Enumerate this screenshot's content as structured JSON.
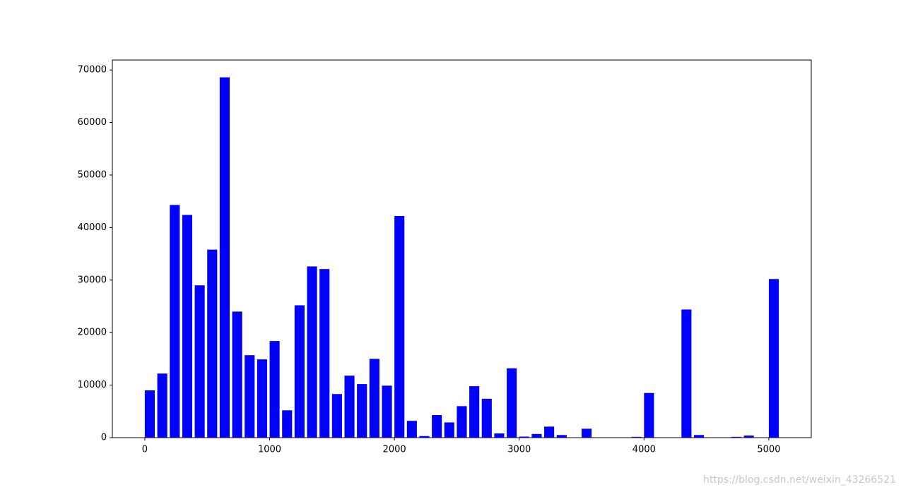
{
  "chart_data": {
    "type": "bar",
    "x": [
      0,
      100,
      200,
      300,
      400,
      500,
      600,
      700,
      800,
      900,
      1000,
      1100,
      1200,
      1300,
      1400,
      1500,
      1600,
      1700,
      1800,
      1900,
      2000,
      2100,
      2200,
      2300,
      2400,
      2500,
      2600,
      2700,
      2800,
      2900,
      3000,
      3100,
      3200,
      3300,
      3400,
      3500,
      3600,
      3700,
      3800,
      3900,
      4000,
      4100,
      4200,
      4300,
      4400,
      4500,
      4600,
      4700,
      4800,
      4900,
      5000
    ],
    "values": [
      9000,
      12200,
      44300,
      42400,
      29000,
      35800,
      68600,
      24000,
      15700,
      14900,
      18400,
      5200,
      25200,
      32600,
      32100,
      8300,
      11800,
      10200,
      15000,
      9900,
      42200,
      3200,
      300,
      4300,
      2900,
      6000,
      9800,
      7400,
      800,
      13200,
      200,
      700,
      2100,
      500,
      0,
      1700,
      0,
      0,
      0,
      150,
      8500,
      0,
      0,
      24400,
      500,
      0,
      0,
      150,
      400,
      0,
      30200
    ],
    "color": "#0000ff",
    "xlim": [
      -260,
      5340
    ],
    "xticks": [
      0,
      1000,
      2000,
      3000,
      4000,
      5000
    ],
    "ylim": [
      0,
      71900
    ],
    "yticks": [
      0,
      10000,
      20000,
      30000,
      40000,
      50000,
      60000,
      70000
    ],
    "grid": false
  },
  "watermark": "https://blog.csdn.net/weixin_43266521"
}
